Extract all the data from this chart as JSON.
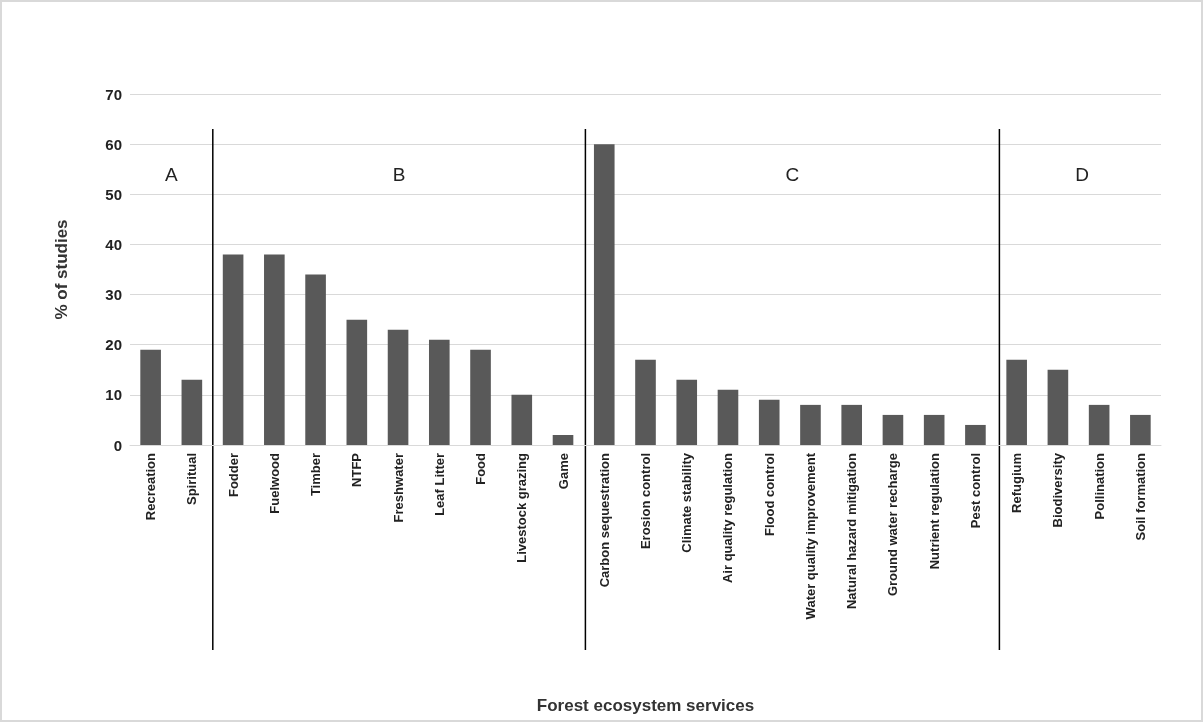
{
  "chart_data": {
    "type": "bar",
    "xlabel": "Forest ecosystem services",
    "ylabel": "% of studies",
    "categories": [
      "Recreation",
      "Spiritual",
      "Fodder",
      "Fuelwood",
      "Timber",
      "NTFP",
      "Freshwater",
      "Leaf Litter",
      "Food",
      "Livestock grazing",
      "Game",
      "Carbon sequestration",
      "Erosion control",
      "Climate stability",
      "Air quality regulation",
      "Flood control",
      "Water quality improvement",
      "Natural hazard mitigation",
      "Ground water recharge",
      "Nutrient regulation",
      "Pest control",
      "Refugium",
      "Biodiversity",
      "Pollination",
      "Soil formation"
    ],
    "values": [
      19,
      13,
      38,
      38,
      34,
      25,
      23,
      21,
      19,
      10,
      2,
      60,
      17,
      13,
      11,
      9,
      8,
      8,
      6,
      6,
      4,
      17,
      15,
      8,
      6
    ],
    "color": "#595959",
    "ylim": [
      0,
      70
    ],
    "yticks": [
      0,
      10,
      20,
      30,
      40,
      50,
      60,
      70
    ],
    "grid": "y",
    "annotations": [
      "A",
      "B",
      "C",
      "D"
    ]
  }
}
